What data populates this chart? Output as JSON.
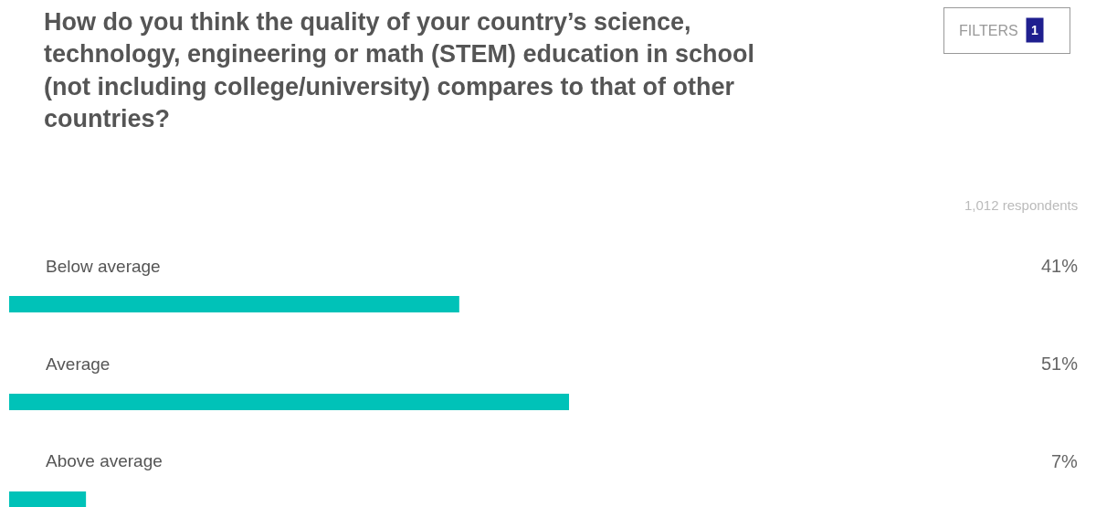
{
  "chart_data": {
    "type": "bar",
    "orientation": "horizontal",
    "title": "How do you think the quality of your country’s science, technology, engineering or math (STEM) education in school (not including college/university) compares to that of other countries?",
    "subtitle": "1,012 respondents",
    "annotations": [
      "FILTERS",
      "1"
    ],
    "categories": [
      "Below average",
      "Average",
      "Above average"
    ],
    "values": [
      41,
      51,
      7
    ],
    "value_labels": [
      "41%",
      "51%",
      "7%"
    ],
    "color": "#00c2b8",
    "legend": false
  }
}
